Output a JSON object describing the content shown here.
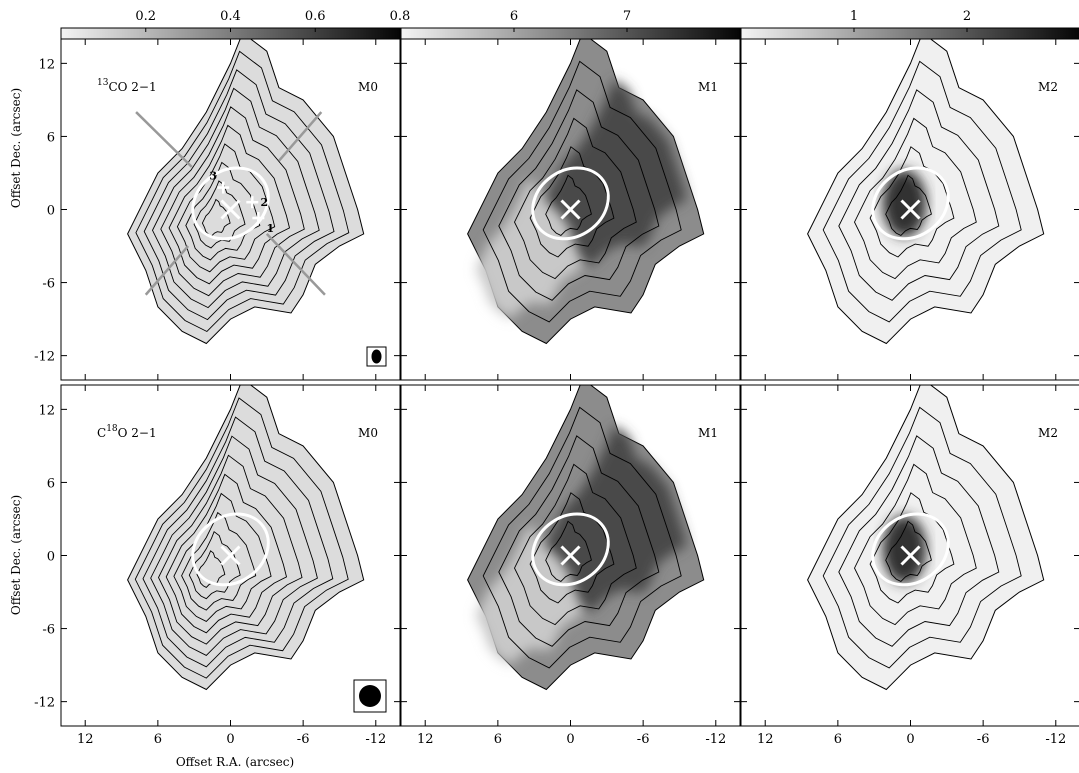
{
  "colorbars": [
    {
      "ticks": [
        "0.2",
        "0.4",
        "0.6",
        "0.8"
      ],
      "values": [
        0.2,
        0.4,
        0.6,
        0.8
      ],
      "range": [
        0.0,
        0.8
      ]
    },
    {
      "ticks": [
        "6",
        "7"
      ],
      "values": [
        6,
        7
      ],
      "range": [
        5.0,
        8.0
      ]
    },
    {
      "ticks": [
        "1",
        "2"
      ],
      "values": [
        1,
        2
      ],
      "range": [
        0.0,
        3.0
      ]
    }
  ],
  "axes": {
    "xlabel": "Offset R.A. (arcsec)",
    "ylabel": "Offset Dec. (arcsec)",
    "xticks": [
      "12",
      "6",
      "0",
      "-6",
      "-12"
    ],
    "xtick_values": [
      12,
      6,
      0,
      -6,
      -12
    ],
    "yticks": [
      "12",
      "6",
      "0",
      "-6",
      "-12"
    ],
    "ytick_values": [
      12,
      6,
      0,
      -6,
      -12
    ],
    "range": [
      -14,
      14
    ]
  },
  "rows": [
    {
      "molecule": {
        "sup": "13",
        "pre": "",
        "post": "CO 2−1"
      }
    },
    {
      "molecule": {
        "sup": "18",
        "pre": "C",
        "post": "O 2−1"
      }
    }
  ],
  "moments": [
    "M0",
    "M1",
    "M2"
  ],
  "markers": [
    {
      "label": "1",
      "x": -2.3,
      "y": -0.7
    },
    {
      "label": "2",
      "x": -1.8,
      "y": 0.6
    },
    {
      "label": "3",
      "x": 0.6,
      "y": 1.8
    }
  ],
  "crosshair": {
    "x": 0.0,
    "y": 0.0
  },
  "ellipse": {
    "cx": 0.0,
    "cy": 0.5,
    "rx": 3.3,
    "ry": 2.7,
    "angle": -35
  }
}
